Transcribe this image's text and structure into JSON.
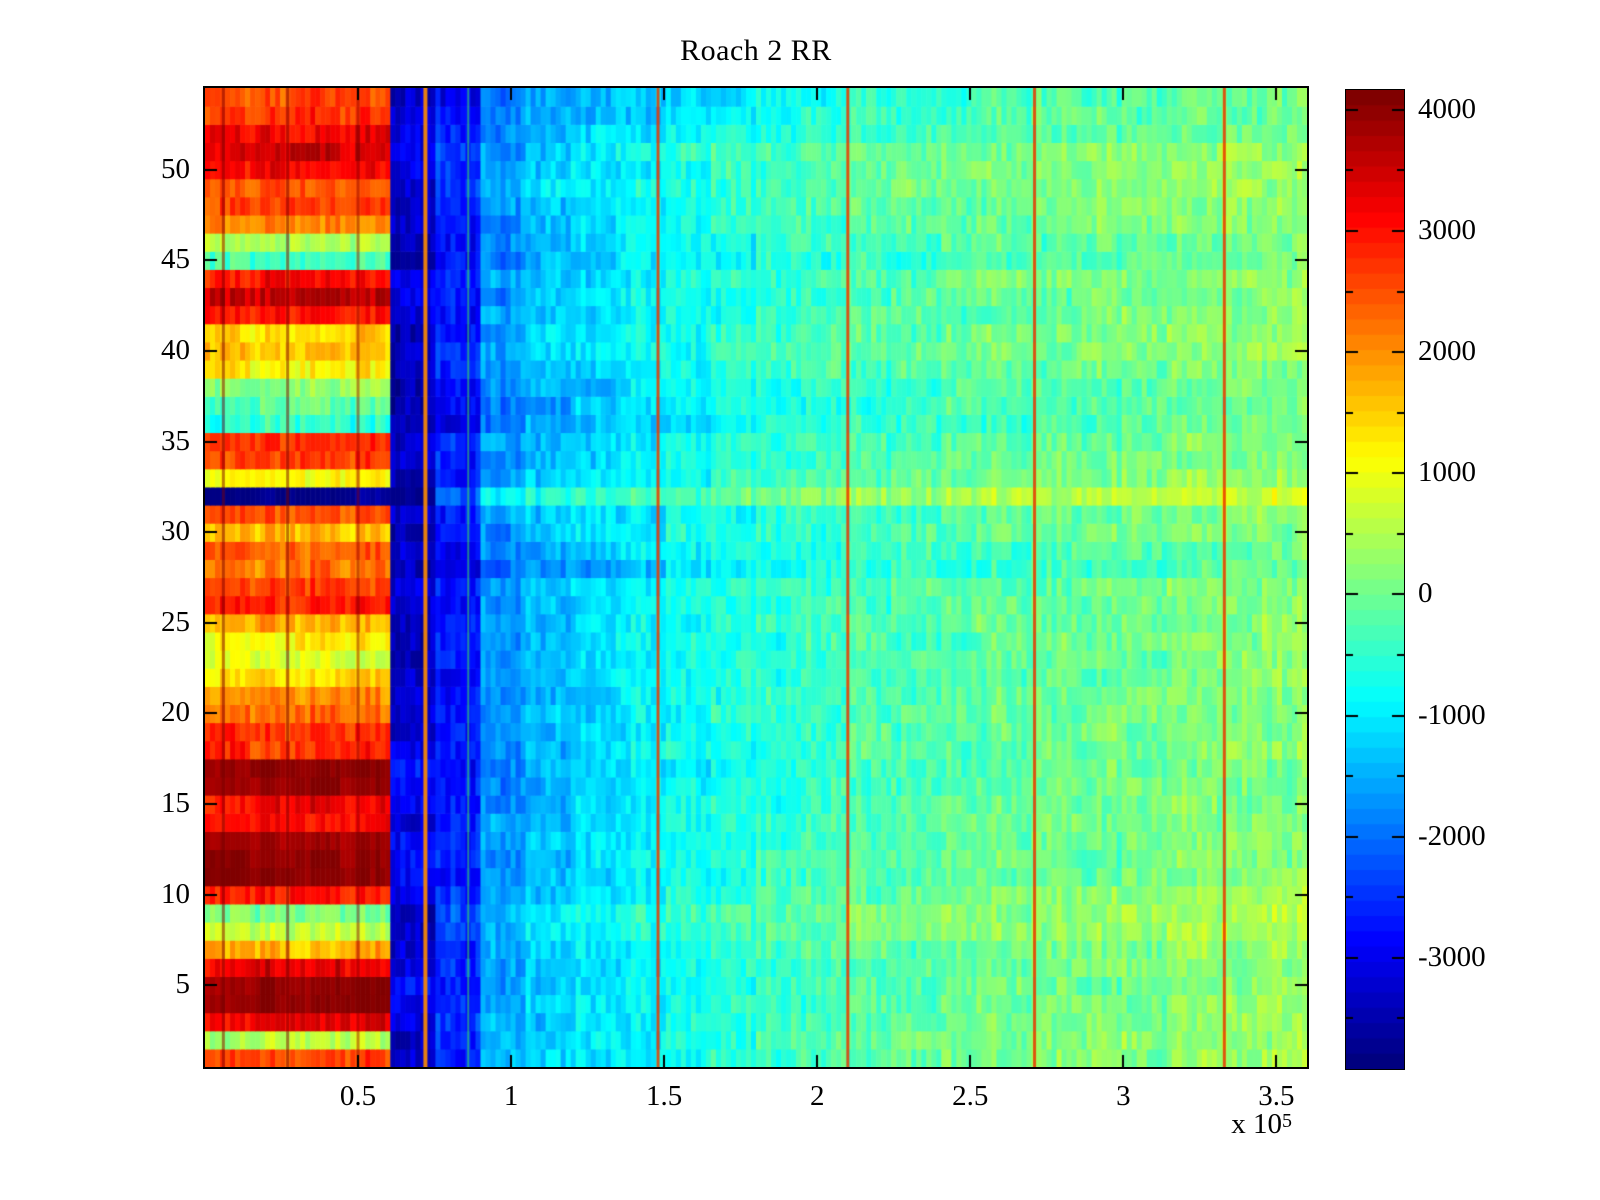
{
  "chart_data": {
    "type": "heatmap",
    "title": "Roach 2 RR",
    "colormap": "jet",
    "x_range": [
      0,
      360000
    ],
    "x_axis_multiplier_label": {
      "base": "x 10",
      "exponent": "5"
    },
    "x_ticks": [
      {
        "value": 50000,
        "label": "0.5"
      },
      {
        "value": 100000,
        "label": "1"
      },
      {
        "value": 150000,
        "label": "1.5"
      },
      {
        "value": 200000,
        "label": "2"
      },
      {
        "value": 250000,
        "label": "2.5"
      },
      {
        "value": 300000,
        "label": "3"
      },
      {
        "value": 350000,
        "label": "3.5"
      }
    ],
    "y_ticks": [
      {
        "value": 5,
        "label": "5"
      },
      {
        "value": 10,
        "label": "10"
      },
      {
        "value": 15,
        "label": "15"
      },
      {
        "value": 20,
        "label": "20"
      },
      {
        "value": 25,
        "label": "25"
      },
      {
        "value": 30,
        "label": "30"
      },
      {
        "value": 35,
        "label": "35"
      },
      {
        "value": 40,
        "label": "40"
      },
      {
        "value": 45,
        "label": "45"
      },
      {
        "value": 50,
        "label": "50"
      }
    ],
    "rows_count": 54,
    "colorbar": {
      "min": -3918,
      "max": 4164,
      "levels": 64,
      "minor_tick_step": 500,
      "ticks": [
        {
          "value": 4000,
          "label": "4000"
        },
        {
          "value": 3000,
          "label": "3000"
        },
        {
          "value": 2000,
          "label": "2000"
        },
        {
          "value": 1000,
          "label": "1000"
        },
        {
          "value": 0,
          "label": "0"
        },
        {
          "value": -1000,
          "label": "-1000"
        },
        {
          "value": -2000,
          "label": "-2000"
        },
        {
          "value": -3000,
          "label": "-3000"
        }
      ]
    },
    "x_bin_width": 15000,
    "value_rule": "per row (bottom row first): columns 0-3 (x<60000) = left; column 4 (60000-75000) = band; columns 5-23 = base_right_profile[c-5] + right_offset",
    "base_right_profile": [
      -2700,
      -1700,
      -1400,
      -1200,
      -1000,
      -800,
      -650,
      -500,
      -400,
      -300,
      -250,
      -150,
      -100,
      -50,
      0,
      50,
      100,
      150,
      200
    ],
    "rows_format": [
      "left_value",
      "band_value",
      "right_offset"
    ],
    "rows": [
      [
        2600,
        -3200,
        150
      ],
      [
        600,
        -3400,
        150
      ],
      [
        3300,
        -3200,
        100
      ],
      [
        4050,
        -3000,
        50
      ],
      [
        4050,
        -3000,
        50
      ],
      [
        3300,
        -3100,
        50
      ],
      [
        1800,
        -3300,
        100
      ],
      [
        700,
        -3500,
        280
      ],
      [
        150,
        -3500,
        320
      ],
      [
        3000,
        -3100,
        100
      ],
      [
        4100,
        -2900,
        0
      ],
      [
        4100,
        -2900,
        0
      ],
      [
        3900,
        -3000,
        0
      ],
      [
        3100,
        -3200,
        0
      ],
      [
        3200,
        -3200,
        0
      ],
      [
        4100,
        -2900,
        -80
      ],
      [
        4100,
        -2900,
        -80
      ],
      [
        2800,
        -3200,
        0
      ],
      [
        2700,
        -3300,
        0
      ],
      [
        2300,
        -3300,
        0
      ],
      [
        2000,
        -3400,
        0
      ],
      [
        1400,
        -3500,
        -60
      ],
      [
        800,
        -3550,
        -60
      ],
      [
        1300,
        -3500,
        0
      ],
      [
        1800,
        -3400,
        0
      ],
      [
        2900,
        -3200,
        0
      ],
      [
        2700,
        -3250,
        0
      ],
      [
        2200,
        -3400,
        -350
      ],
      [
        2400,
        -3350,
        -180
      ],
      [
        1700,
        -3450,
        0
      ],
      [
        2600,
        -3250,
        0
      ],
      [
        -3850,
        -3850,
        600
      ],
      [
        1100,
        -3500,
        120
      ],
      [
        2700,
        -3250,
        0
      ],
      [
        2800,
        -3200,
        0
      ],
      [
        -500,
        -3700,
        -260
      ],
      [
        -300,
        -3700,
        -200
      ],
      [
        300,
        -3600,
        -120
      ],
      [
        1300,
        -3500,
        0
      ],
      [
        1700,
        -3450,
        100
      ],
      [
        1400,
        -3500,
        120
      ],
      [
        3000,
        -3150,
        0
      ],
      [
        3700,
        -3050,
        0
      ],
      [
        3100,
        -3150,
        100
      ],
      [
        -200,
        -3700,
        -150
      ],
      [
        600,
        -3550,
        -60
      ],
      [
        2100,
        -3400,
        0
      ],
      [
        2700,
        -3250,
        120
      ],
      [
        2500,
        -3300,
        200
      ],
      [
        3200,
        -3150,
        160
      ],
      [
        3600,
        -3100,
        140
      ],
      [
        3300,
        -3150,
        -80
      ],
      [
        2800,
        -3250,
        -200
      ],
      [
        2600,
        -3300,
        -260
      ]
    ],
    "vertical_streaks": [
      {
        "x": 6000,
        "color": "#7A0000",
        "width": 3,
        "opacity": 0.5
      },
      {
        "x": 27000,
        "color": "#7A0000",
        "width": 3,
        "opacity": 0.5
      },
      {
        "x": 50000,
        "color": "#8B0000",
        "width": 3,
        "opacity": 0.45
      },
      {
        "x": 72000,
        "color": "#FF8C00",
        "width": 4,
        "opacity": 0.9
      },
      {
        "x": 86000,
        "color": "#40FF40",
        "width": 2,
        "opacity": 0.5
      },
      {
        "x": 148000,
        "color": "#E83800",
        "width": 3,
        "opacity": 0.85
      },
      {
        "x": 210000,
        "color": "#E83800",
        "width": 3,
        "opacity": 0.85
      },
      {
        "x": 271000,
        "color": "#E83800",
        "width": 3,
        "opacity": 0.85
      },
      {
        "x": 333000,
        "color": "#E83800",
        "width": 3,
        "opacity": 0.85
      }
    ],
    "texture_noise": 330
  }
}
